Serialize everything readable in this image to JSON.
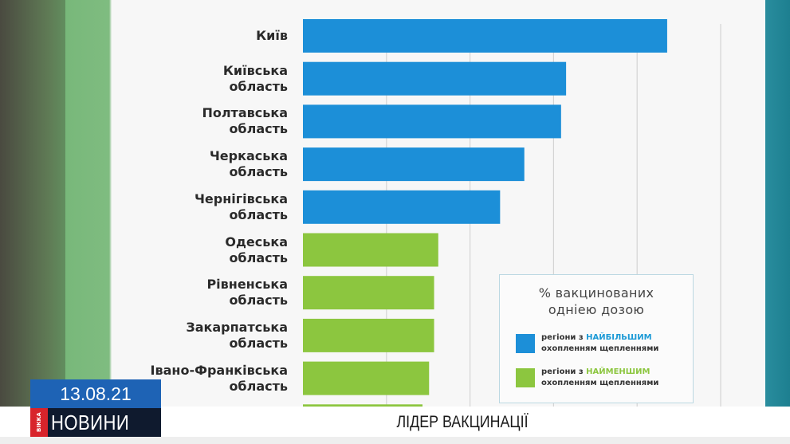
{
  "chart_data": {
    "type": "bar",
    "orientation": "horizontal",
    "categories": [
      "Київ",
      "Київська\nобласть",
      "Полтавська\nобласть",
      "Черкаська\nобласть",
      "Чернігівська\nобласть",
      "Одеська\nобласть",
      "Рівненська\nобласть",
      "Закарпатська\nобласть",
      "Івано-Франківська\nобласть"
    ],
    "values": [
      43.6,
      31.5,
      30.9,
      26.5,
      23.6,
      16.2,
      15.7,
      15.7,
      15.1
    ],
    "groups": [
      "top",
      "top",
      "top",
      "top",
      "top",
      "bottom",
      "bottom",
      "bottom",
      "bottom"
    ],
    "xlim": [
      0,
      50
    ],
    "grid": true,
    "colors": {
      "top": "#1c8fd8",
      "bottom": "#8cc63f"
    },
    "legend": {
      "title": "% вакцинованих\nодніею дозою",
      "placement": "bottom-right",
      "items": [
        {
          "group": "top",
          "prefix": "регіони з ",
          "highlight": "НАЙБІЛЬШИМ",
          "suffix": "охопленням щепленнями",
          "color": "#1c8fd8"
        },
        {
          "group": "bottom",
          "prefix": "регіони з ",
          "highlight": "НАЙМЕНШИМ",
          "suffix": "охопленням щепленнями",
          "color": "#8cc63f"
        }
      ]
    }
  },
  "overlay": {
    "date": "13.08.21",
    "channel_logo": "ВІККА",
    "section": "НОВИНИ",
    "headline": "ЛІДЕР ВАКЦИНАЦІЇ"
  }
}
